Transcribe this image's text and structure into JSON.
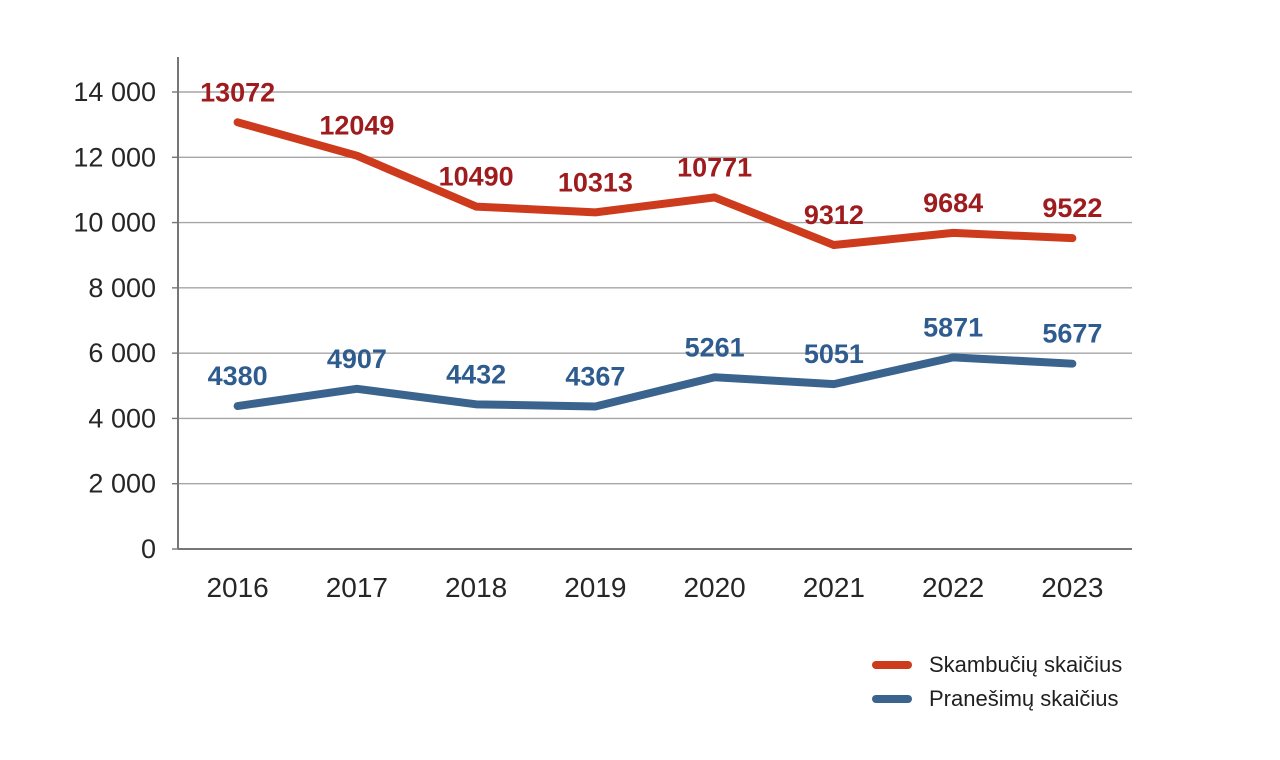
{
  "chart_data": {
    "type": "line",
    "categories": [
      "2016",
      "2017",
      "2018",
      "2019",
      "2020",
      "2021",
      "2022",
      "2023"
    ],
    "series": [
      {
        "name": "Skambučių skaičius",
        "values": [
          13072,
          12049,
          10490,
          10313,
          10771,
          9312,
          9684,
          9522
        ],
        "line_color": "#CE3A1C",
        "label_color": "#9E1B1E"
      },
      {
        "name": "Pranešimų skaičius",
        "values": [
          4380,
          4907,
          4432,
          4367,
          5261,
          5051,
          5871,
          5677
        ],
        "line_color": "#3A648E",
        "label_color": "#2E5C8E"
      }
    ],
    "title": "",
    "xlabel": "",
    "ylabel": "",
    "ylim": [
      0,
      14000
    ],
    "y_tick_step": 2000,
    "y_tick_labels": [
      "0",
      "2 000",
      "4 000",
      "6 000",
      "8 000",
      "10 000",
      "12 000",
      "14 000"
    ],
    "grid": true,
    "data_labels": true,
    "legend_position": "bottom-right"
  },
  "legend": {
    "items": [
      {
        "label": "Skambučių skaičius",
        "color": "#CE3A1C"
      },
      {
        "label": "Pranešimų skaičius",
        "color": "#3A648E"
      }
    ]
  },
  "colors": {
    "background": "#FFFFFF",
    "gridline": "#A6A6A6",
    "axis": "#767676",
    "tick_label": "#262626",
    "legend_text": "#1F1F1F"
  }
}
